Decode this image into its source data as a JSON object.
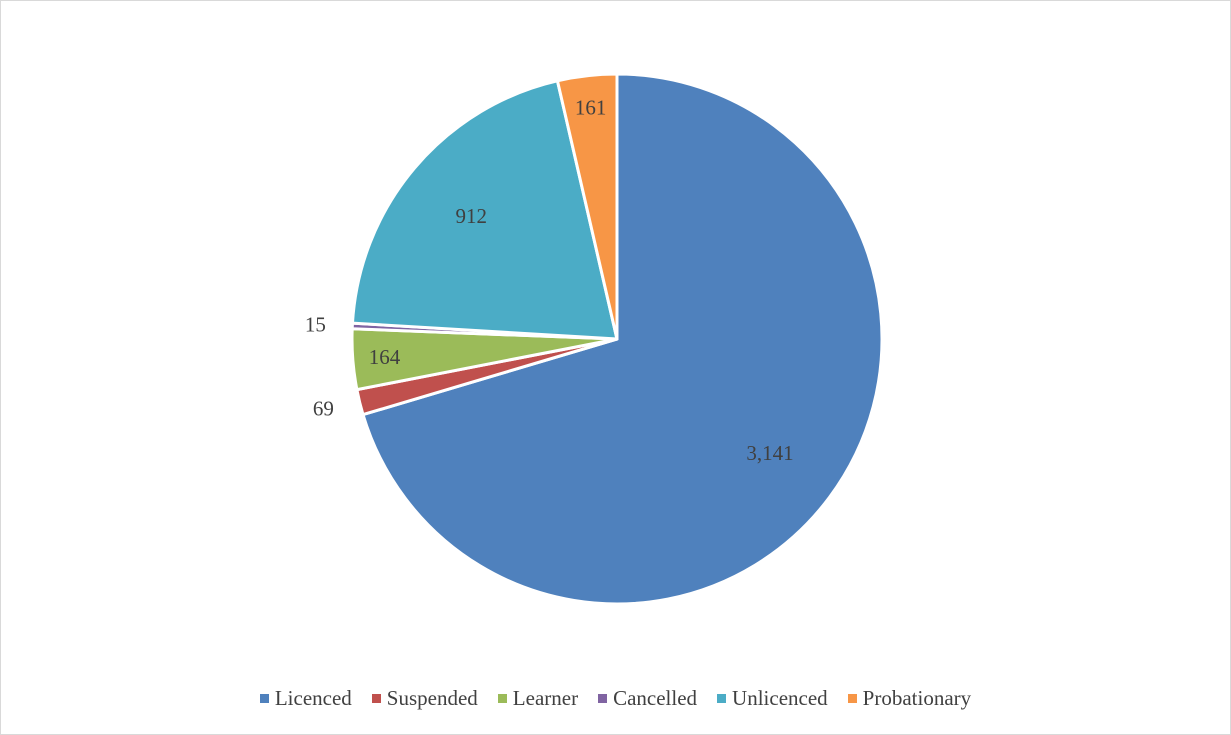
{
  "chart_data": {
    "type": "pie",
    "title": "",
    "categories": [
      "Licenced",
      "Suspended",
      "Learner",
      "Cancelled",
      "Unlicenced",
      "Probationary"
    ],
    "values": [
      3141,
      69,
      164,
      15,
      912,
      161
    ],
    "data_labels": [
      "3,141",
      "69",
      "164",
      "15",
      "912",
      "161"
    ],
    "colors": [
      "#4f81bd",
      "#c0504d",
      "#9bbb59",
      "#8064a2",
      "#4bacc6",
      "#f79646"
    ],
    "start_angle_deg": 0,
    "direction": "clockwise",
    "legend_position": "bottom"
  }
}
